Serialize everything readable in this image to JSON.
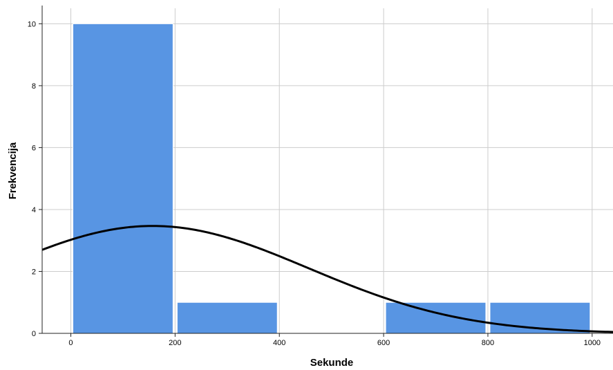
{
  "chart_data": {
    "type": "bar",
    "subtype": "histogram",
    "xlabel": "Sekunde",
    "ylabel": "Frekvencija",
    "xlim": [
      -55,
      1040
    ],
    "ylim": [
      0,
      10.5
    ],
    "xticks": [
      0,
      200,
      400,
      600,
      800,
      1000
    ],
    "yticks": [
      0,
      2,
      4,
      6,
      8,
      10
    ],
    "grid": true,
    "bins": [
      {
        "x0": 0,
        "x1": 200,
        "count": 10
      },
      {
        "x0": 200,
        "x1": 400,
        "count": 1
      },
      {
        "x0": 400,
        "x1": 600,
        "count": 0
      },
      {
        "x0": 600,
        "x1": 800,
        "count": 1
      },
      {
        "x0": 800,
        "x1": 1000,
        "count": 1
      }
    ],
    "normal_curve": {
      "mean": 157,
      "std": 299,
      "n": 13,
      "bin_width": 200
    },
    "colors": {
      "bar": "#5895e3",
      "bar_edge": "#ffffff",
      "curve": "#000000",
      "grid": "#cccccc",
      "axis": "#222222"
    }
  }
}
